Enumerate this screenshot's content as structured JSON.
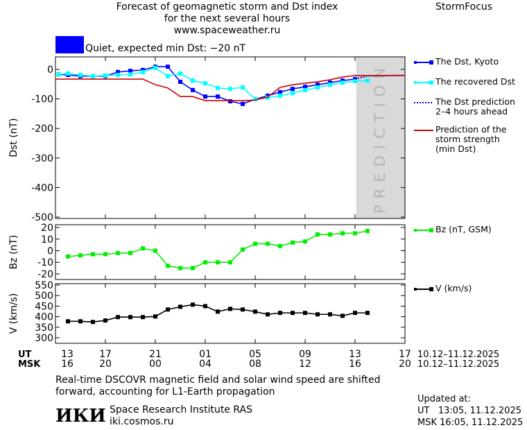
{
  "header": {
    "title": [
      "Forecast of geomagnetic storm and Dst index",
      "for the next several hours",
      "www.spaceweather.ru"
    ],
    "brand": "StormFocus",
    "status": "Quiet, expected min Dst: −20 nT",
    "status_color": "#0000ff"
  },
  "chart_data": [
    {
      "type": "line",
      "ylabel": "Dst (nT)",
      "xlim": [
        0,
        28
      ],
      "ylim": [
        -504.7,
        42.3
      ],
      "yticks": [
        0,
        -100,
        -200,
        -300,
        -400,
        -500
      ],
      "prediction_band": {
        "xlim": [
          24.1,
          28
        ],
        "label": "PREDICTION",
        "color": "#d9d9d9"
      },
      "series": [
        {
          "name": "The Dst, Kyoto",
          "color": "#0000ff",
          "marker": "square",
          "x": [
            0.25,
            1,
            2,
            3,
            4,
            5,
            6,
            7,
            8,
            9,
            10,
            11,
            12,
            13,
            14,
            15,
            16,
            17,
            18,
            19,
            20,
            21,
            22,
            23,
            24
          ],
          "values": [
            -17,
            -19,
            -23,
            -23,
            -23,
            -9,
            -5,
            -2,
            9,
            9,
            -42,
            -70,
            -92,
            -92,
            -108,
            -117,
            -101,
            -89,
            -77,
            -66,
            -59,
            -52,
            -45,
            -38,
            -33
          ]
        },
        {
          "name": "The recovered Dst",
          "color": "#00ffff",
          "marker": "square",
          "x": [
            0.25,
            1,
            2,
            3,
            4,
            5,
            6,
            7,
            8,
            9,
            10,
            11,
            12,
            13,
            14,
            15,
            16,
            17,
            18,
            19,
            20,
            21,
            22,
            23,
            24,
            25
          ],
          "values": [
            -17,
            -14,
            -19,
            -23,
            -21,
            -19,
            -17,
            -9,
            5,
            -23,
            -14,
            -38,
            -47,
            -63,
            -66,
            -61,
            -101,
            -96,
            -89,
            -80,
            -70,
            -61,
            -52,
            -45,
            -40,
            -38
          ]
        },
        {
          "name": "The Dst prediction\n2–4 hours ahead",
          "color": "#0000cc",
          "dash": "dotted",
          "x": [
            24,
            25,
            28
          ],
          "values": [
            -33,
            -22,
            -20
          ]
        },
        {
          "name": "Prediction of the\nstorm strength\n(min Dst)",
          "color": "#cc0000",
          "x": [
            0,
            7,
            8,
            9,
            10,
            11,
            12,
            13,
            14,
            15,
            16,
            17,
            18,
            19,
            20,
            21,
            22,
            23,
            24,
            28
          ],
          "values": [
            -33,
            -33,
            -52,
            -63,
            -92,
            -92,
            -106,
            -106,
            -106,
            -106,
            -104,
            -94,
            -61,
            -52,
            -47,
            -42,
            -35,
            -26,
            -21,
            -21
          ]
        }
      ]
    },
    {
      "type": "line",
      "ylabel": "Bz (nT)",
      "xlim": [
        0,
        28
      ],
      "ylim": [
        -24.8,
        22.4
      ],
      "yticks": [
        20,
        10,
        0,
        -10,
        -20
      ],
      "series": [
        {
          "name": "Bz (nT, GSM)",
          "color": "#00ee00",
          "marker": "square",
          "x": [
            1,
            2,
            3,
            4,
            5,
            6,
            7,
            8,
            9,
            10,
            11,
            12,
            13,
            14,
            15,
            16,
            17,
            18,
            19,
            20,
            21,
            22,
            23,
            24,
            25
          ],
          "values": [
            -5,
            -4,
            -3,
            -3,
            -2,
            -2,
            2,
            0,
            -13,
            -15,
            -15,
            -10,
            -10,
            -10,
            1,
            6,
            6,
            4,
            7,
            8,
            14,
            14,
            15,
            15,
            17
          ]
        }
      ]
    },
    {
      "type": "line",
      "ylabel": "V (km/s)",
      "xlim": [
        0,
        28
      ],
      "ylim": [
        273.7,
        556.6
      ],
      "yticks": [
        550,
        500,
        450,
        400,
        350,
        300
      ],
      "series": [
        {
          "name": "V (km/s)",
          "color": "#000000",
          "marker": "square",
          "x": [
            1,
            2,
            3,
            4,
            5,
            6,
            7,
            8,
            9,
            10,
            11,
            12,
            13,
            14,
            15,
            16,
            17,
            18,
            19,
            20,
            21,
            22,
            23,
            24,
            25
          ],
          "values": [
            378,
            378,
            375,
            382,
            398,
            398,
            398,
            401,
            434,
            447,
            457,
            450,
            424,
            437,
            434,
            424,
            411,
            418,
            418,
            418,
            411,
            411,
            404,
            418,
            418
          ]
        }
      ],
      "xtick_rows": [
        {
          "name": "UT",
          "range": "10.12–11.12.2025",
          "ticks": [
            {
              "value": 0,
              "label": "13"
            },
            {
              "value": 4,
              "label": "17"
            },
            {
              "value": 8,
              "label": "21"
            },
            {
              "value": 12,
              "label": "01"
            },
            {
              "value": 16,
              "label": "05"
            },
            {
              "value": 20,
              "label": "09"
            },
            {
              "value": 24,
              "label": "13"
            },
            {
              "value": 28,
              "label": "17"
            }
          ]
        },
        {
          "name": "MSK",
          "range": "10.12–11.12.2025",
          "ticks": [
            {
              "value": 0,
              "label": "16"
            },
            {
              "value": 4,
              "label": "20"
            },
            {
              "value": 8,
              "label": "00"
            },
            {
              "value": 12,
              "label": "04"
            },
            {
              "value": 16,
              "label": "08"
            },
            {
              "value": 20,
              "label": "12"
            },
            {
              "value": 24,
              "label": "16"
            },
            {
              "value": 28,
              "label": "20"
            }
          ]
        }
      ]
    }
  ],
  "footer": {
    "note": [
      "Real-time DSCOVR magnetic field and solar wind speed are shifted",
      "forward, accounting for L1-Earth propagation"
    ],
    "logo": "ИКИ",
    "institute": "Space Research Institute RAS",
    "url": "iki.cosmos.ru",
    "updated_label": "Updated at:",
    "updated": [
      "UT   13:05, 11.12.2025",
      "MSK 16:05, 11.12.2025"
    ]
  }
}
